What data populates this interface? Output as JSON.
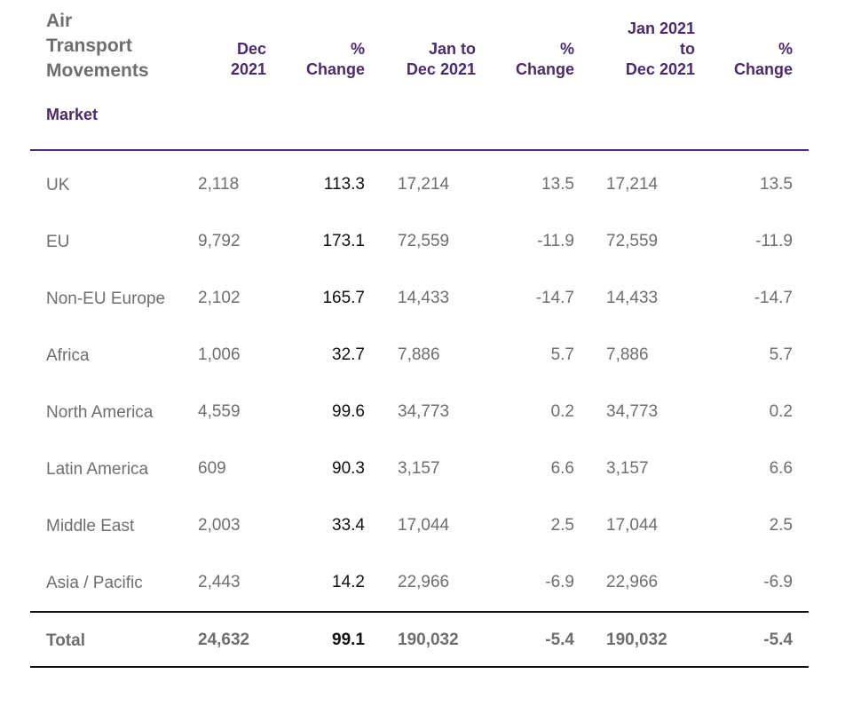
{
  "table": {
    "title_lines": [
      "Air",
      "Transport",
      "Movements"
    ],
    "market_label": "Market",
    "columns": [
      {
        "lines": [
          "Dec",
          "2021"
        ]
      },
      {
        "lines": [
          "%",
          "Change"
        ]
      },
      {
        "lines": [
          "Jan to",
          "Dec 2021"
        ]
      },
      {
        "lines": [
          "%",
          "Change"
        ]
      },
      {
        "lines": [
          "Jan 2021",
          "to",
          "Dec 2021"
        ]
      },
      {
        "lines": [
          "%",
          "Change"
        ]
      }
    ],
    "rows": [
      {
        "market": "UK",
        "v1": "2,118",
        "v2": "113.3",
        "v3": "17,214",
        "v4": "13.5",
        "v5": "17,214",
        "v6": "13.5"
      },
      {
        "market": "EU",
        "v1": "9,792",
        "v2": "173.1",
        "v3": "72,559",
        "v4": "-11.9",
        "v5": "72,559",
        "v6": "-11.9"
      },
      {
        "market": "Non-EU Europe",
        "v1": "2,102",
        "v2": "165.7",
        "v3": "14,433",
        "v4": "-14.7",
        "v5": "14,433",
        "v6": "-14.7"
      },
      {
        "market": "Africa",
        "v1": "1,006",
        "v2": "32.7",
        "v3": "7,886",
        "v4": "5.7",
        "v5": "7,886",
        "v6": "5.7"
      },
      {
        "market": "North America",
        "v1": "4,559",
        "v2": "99.6",
        "v3": "34,773",
        "v4": "0.2",
        "v5": "34,773",
        "v6": "0.2"
      },
      {
        "market": "Latin America",
        "v1": "609",
        "v2": "90.3",
        "v3": "3,157",
        "v4": "6.6",
        "v5": "3,157",
        "v6": "6.6"
      },
      {
        "market": "Middle East",
        "v1": "2,003",
        "v2": "33.4",
        "v3": "17,044",
        "v4": "2.5",
        "v5": "17,044",
        "v6": "2.5"
      },
      {
        "market": "Asia / Pacific",
        "v1": "2,443",
        "v2": "14.2",
        "v3": "22,966",
        "v4": "-6.9",
        "v5": "22,966",
        "v6": "-6.9"
      }
    ],
    "total": {
      "market": "Total",
      "v1": "24,632",
      "v2": "99.1",
      "v3": "190,032",
      "v4": "-5.4",
      "v5": "190,032",
      "v6": "-5.4"
    }
  }
}
